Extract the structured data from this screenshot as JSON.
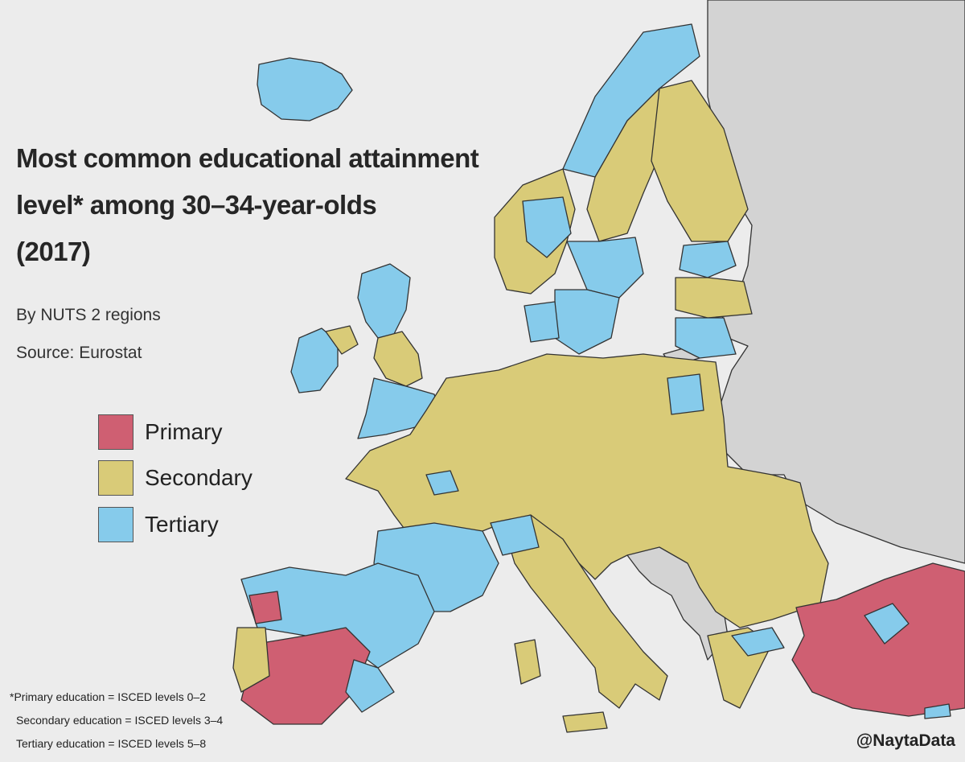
{
  "title": {
    "line1": "Most common educational attainment",
    "line2": "level* among 30–34-year-olds",
    "line3": "(2017)"
  },
  "subtitle": "By NUTS 2 regions",
  "source": "Source: Eurostat",
  "legend": [
    {
      "label": "Primary",
      "color": "#cf5f72"
    },
    {
      "label": "Secondary",
      "color": "#d9cb78"
    },
    {
      "label": "Tertiary",
      "color": "#86cbeb"
    }
  ],
  "footnotes": [
    "*Primary education = ISCED levels 0–2",
    "Secondary education = ISCED levels 3–4",
    "Tertiary education = ISCED levels 5–8"
  ],
  "credit": "@NaytaData",
  "colors": {
    "sea": "#ececec",
    "no_data": "#d3d3d3",
    "border": "#333333",
    "primary": "#cf5f72",
    "secondary": "#d9cb78",
    "tertiary": "#86cbeb"
  }
}
